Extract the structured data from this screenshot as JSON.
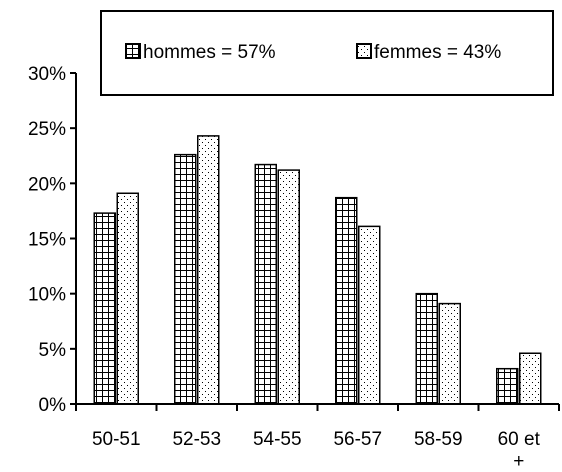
{
  "chart_data": {
    "type": "bar",
    "categories": [
      "50-51",
      "52-53",
      "54-55",
      "56-57",
      "58-59",
      "60 et +"
    ],
    "series": [
      {
        "name": "hommes = 57%",
        "values": [
          17.3,
          22.6,
          21.7,
          18.7,
          10.0,
          3.2
        ],
        "pattern": "grid"
      },
      {
        "name": "femmes = 43%",
        "values": [
          19.1,
          24.3,
          21.2,
          16.1,
          9.1,
          4.6
        ],
        "pattern": "dots"
      }
    ],
    "y_ticks": [
      "0%",
      "5%",
      "10%",
      "15%",
      "20%",
      "25%",
      "30%"
    ],
    "ylim": [
      0,
      30
    ],
    "ytick_step": 5,
    "legend": "top",
    "grid": false,
    "colors": {
      "bar_fill": "#ffffff",
      "ink": "#000000"
    }
  }
}
